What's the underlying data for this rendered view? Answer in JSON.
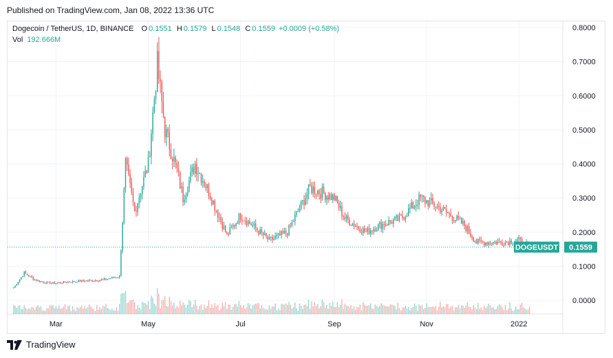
{
  "header": {
    "published": "Published on TradingView.com, Jan 08, 2022 13:36 UTC"
  },
  "legend": {
    "symbol": "Dogecoin / TetherUS, 1D, BINANCE",
    "open_key": "O",
    "open": "0.1551",
    "high_key": "H",
    "high": "0.1579",
    "low_key": "L",
    "low": "0.1548",
    "close_key": "C",
    "close": "0.1559",
    "change": "+0.0009 (+0.58%)",
    "vol_key": "Vol",
    "vol": "192.666M"
  },
  "price_tag": {
    "symbol": "DOGEUSDT",
    "value": "0.1559"
  },
  "footer": {
    "brand": "TradingView"
  },
  "colors": {
    "up": "#26a69a",
    "down": "#ef5350",
    "grid": "#f0f3fa",
    "axis_text": "#131722"
  },
  "chart_data": {
    "type": "candlestick",
    "series_name": "DOGEUSDT",
    "y_axis": {
      "ticks": [
        "0.8000",
        "0.7000",
        "0.6000",
        "0.5000",
        "0.4000",
        "0.3000",
        "0.2000",
        "0.1000",
        "0.0000"
      ],
      "ylim": [
        -0.035,
        0.81
      ]
    },
    "x_axis": {
      "ticks": [
        "Mar",
        "May",
        "Jul",
        "Sep",
        "Nov",
        "2022"
      ]
    },
    "last_price": 0.1559,
    "approx_close_path": [
      [
        "2021-02-01",
        0.037
      ],
      [
        "2021-02-08",
        0.08
      ],
      [
        "2021-02-15",
        0.06
      ],
      [
        "2021-02-22",
        0.052
      ],
      [
        "2021-03-01",
        0.05
      ],
      [
        "2021-03-15",
        0.056
      ],
      [
        "2021-04-01",
        0.06
      ],
      [
        "2021-04-12",
        0.07
      ],
      [
        "2021-04-16",
        0.4
      ],
      [
        "2021-04-22",
        0.26
      ],
      [
        "2021-05-01",
        0.4
      ],
      [
        "2021-05-07",
        0.69
      ],
      [
        "2021-05-12",
        0.5
      ],
      [
        "2021-05-20",
        0.38
      ],
      [
        "2021-05-24",
        0.3
      ],
      [
        "2021-06-01",
        0.4
      ],
      [
        "2021-06-10",
        0.32
      ],
      [
        "2021-06-22",
        0.19
      ],
      [
        "2021-07-01",
        0.25
      ],
      [
        "2021-07-20",
        0.175
      ],
      [
        "2021-08-01",
        0.2
      ],
      [
        "2021-08-16",
        0.33
      ],
      [
        "2021-09-01",
        0.3
      ],
      [
        "2021-09-08",
        0.24
      ],
      [
        "2021-09-22",
        0.2
      ],
      [
        "2021-10-01",
        0.22
      ],
      [
        "2021-10-15",
        0.24
      ],
      [
        "2021-10-28",
        0.3
      ],
      [
        "2021-11-10",
        0.27
      ],
      [
        "2021-11-26",
        0.22
      ],
      [
        "2021-12-04",
        0.17
      ],
      [
        "2021-12-20",
        0.17
      ],
      [
        "2022-01-01",
        0.175
      ],
      [
        "2022-01-08",
        0.1559
      ]
    ]
  }
}
